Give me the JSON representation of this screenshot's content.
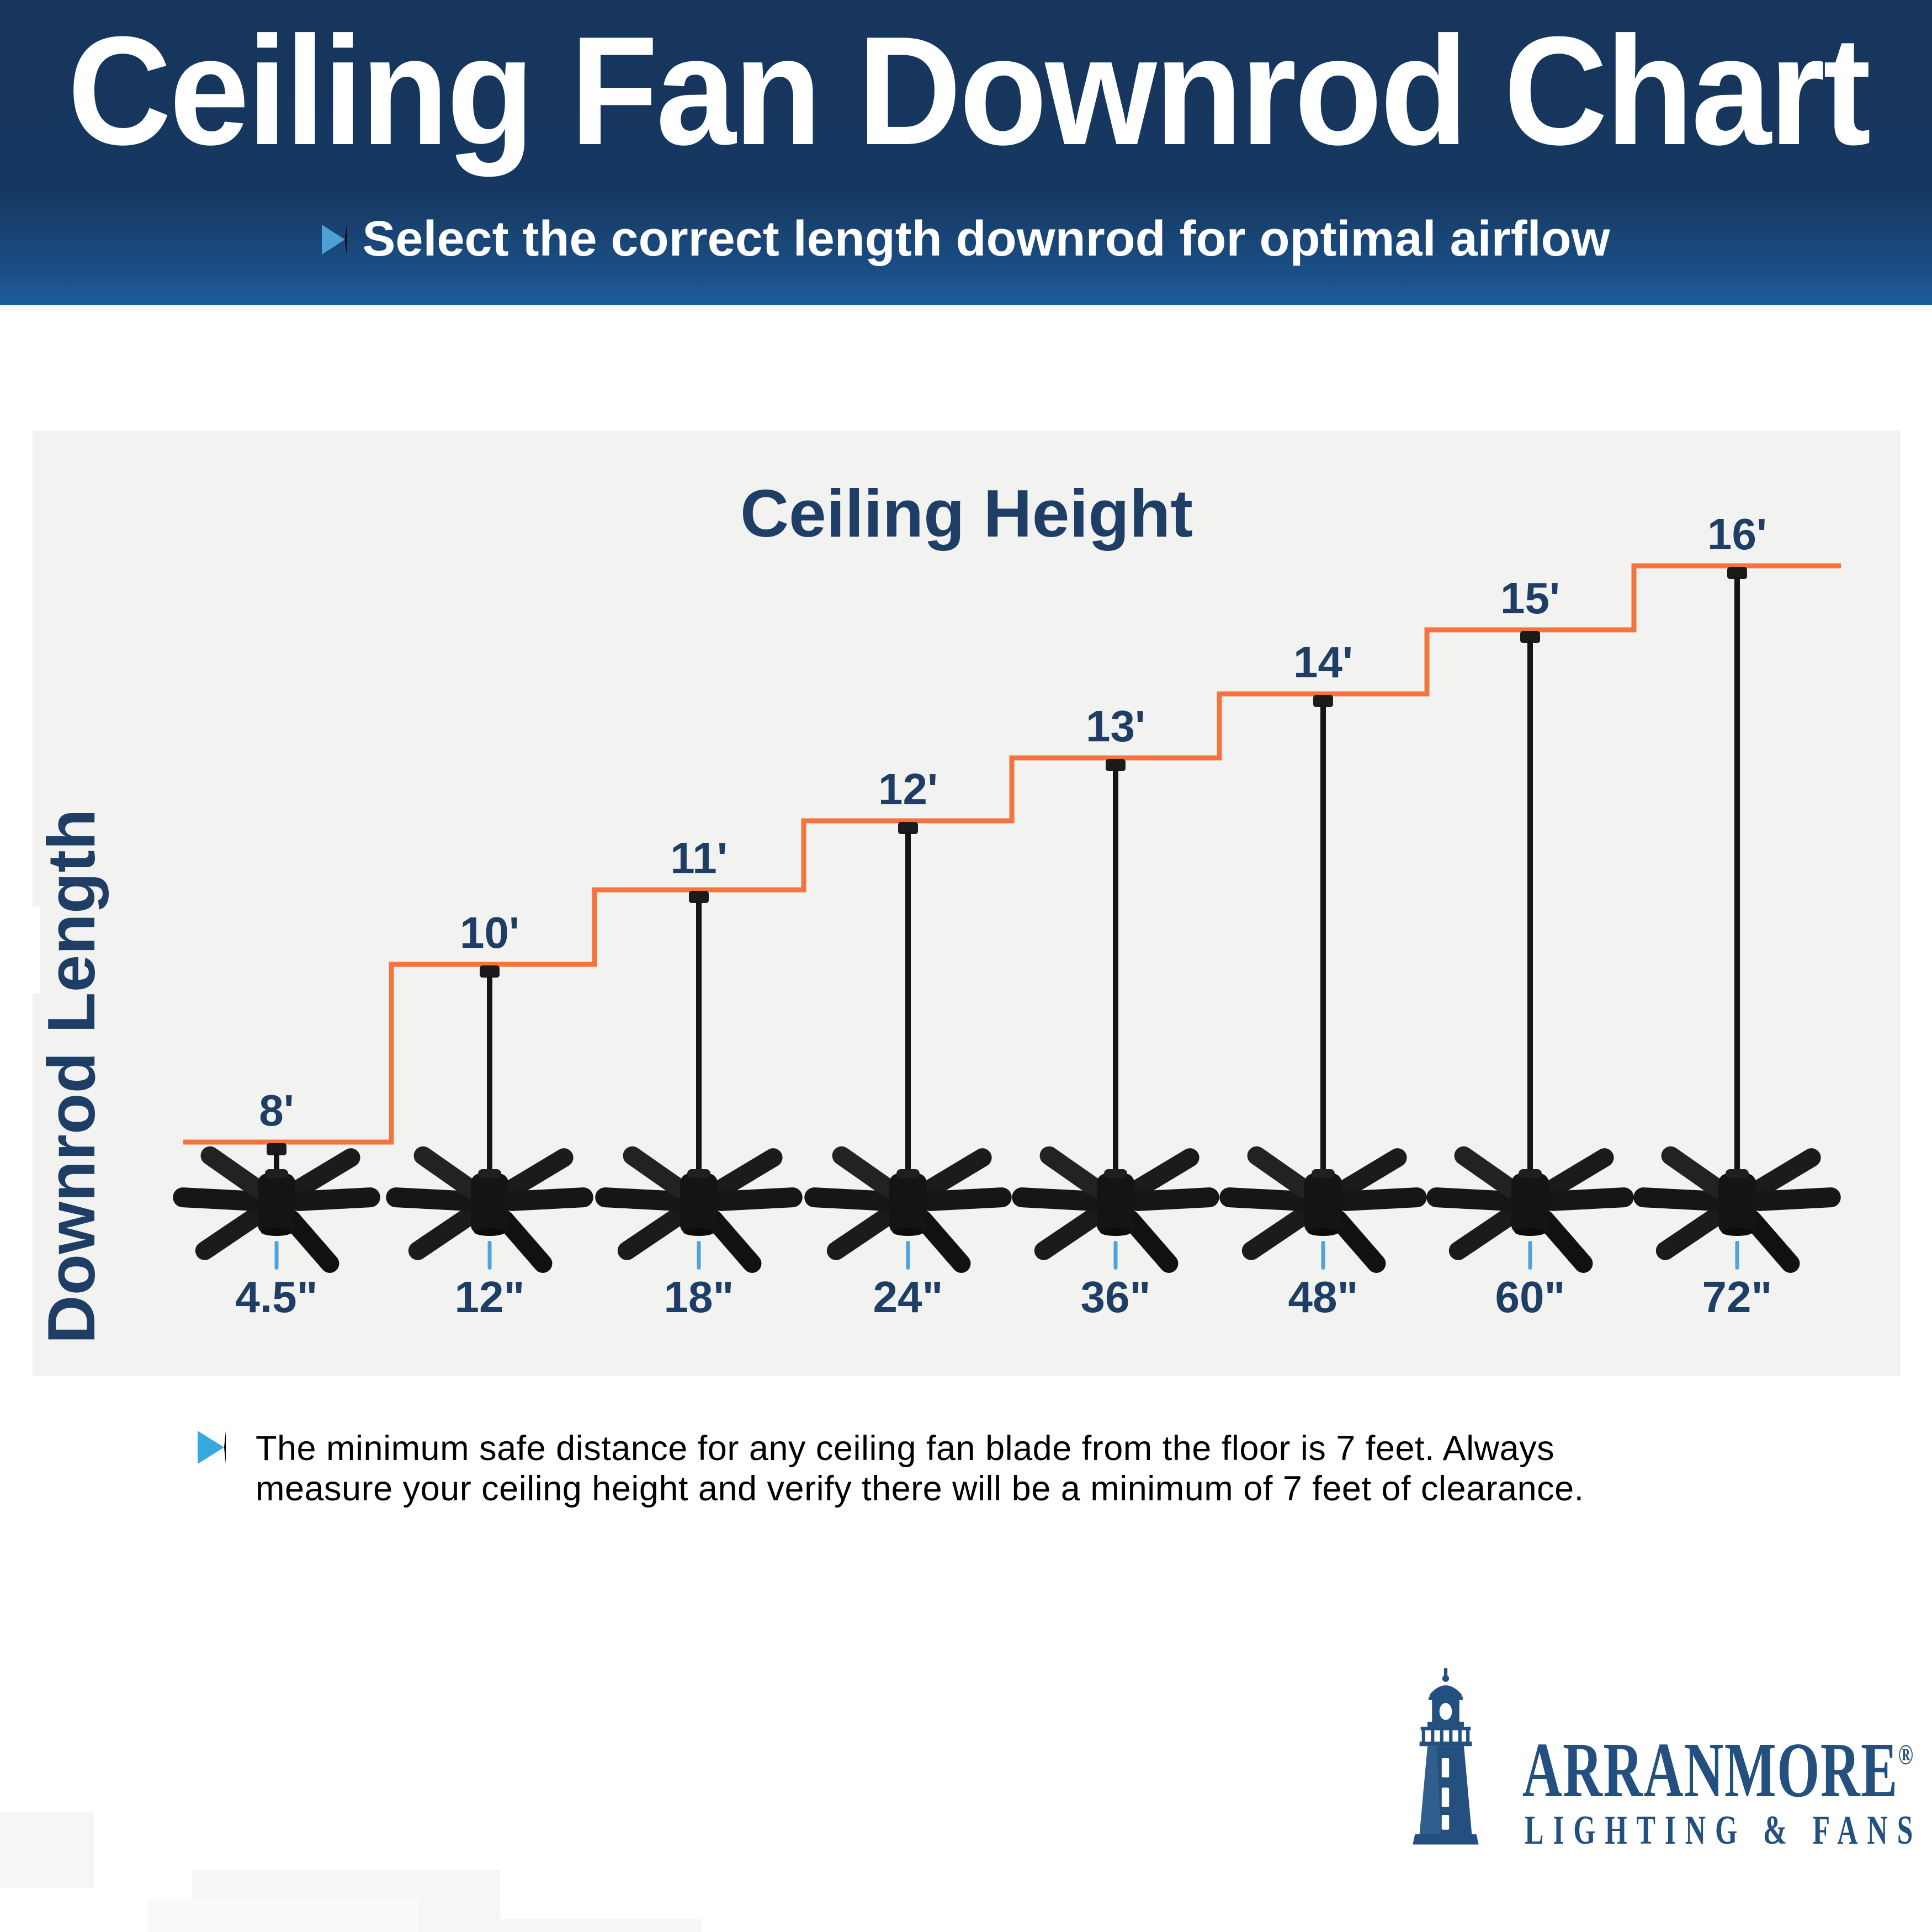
{
  "header": {
    "title": "Ceiling Fan Downrod Chart",
    "subtitle": "Select the correct length downrod for optimal airflow"
  },
  "chart": {
    "title": "Ceiling Height",
    "y_axis_label": "Downrod Length",
    "chart_data": {
      "type": "step",
      "title": "Ceiling Height",
      "xlabel": "Downrod Length",
      "ylabel": "Ceiling Height (feet)",
      "categories": [
        "4.5\"",
        "12\"",
        "18\"",
        "24\"",
        "36\"",
        "48\"",
        "60\"",
        "72\""
      ],
      "downrod_length_inches": [
        4.5,
        12,
        18,
        24,
        36,
        48,
        60,
        72
      ],
      "ceiling_height_labels": [
        "8'",
        "10'",
        "11'",
        "12'",
        "13'",
        "14'",
        "15'",
        "16'"
      ],
      "ceiling_height_feet": [
        8,
        10,
        11,
        12,
        13,
        14,
        15,
        16
      ],
      "legend": "none",
      "grid": false,
      "line_color": "#F4743E",
      "marker": "ceiling-fan-illustration"
    }
  },
  "note": {
    "line1": "The minimum safe distance for any ceiling fan blade from the floor is 7 feet.  Always",
    "line2": "measure your ceiling height and verify there will be a minimum of 7 feet of clearance."
  },
  "logo": {
    "brand": "ARRANMORE",
    "registered": "®",
    "tagline": "LIGHTING & FANS"
  },
  "colors": {
    "accent_orange": "#F4743E",
    "navy_text": "#1E3E66",
    "header_navy_top": "#16365E",
    "header_navy_bottom": "#1D5F9A",
    "panel_gray": "#F2F2F0",
    "tick_blue": "#4EA3DF",
    "bullet_blue": "#35A8E1",
    "logo_navy": "#23507E",
    "fan_black": "#161616",
    "note_black": "#000000",
    "title_white": "#FFFFFF"
  }
}
